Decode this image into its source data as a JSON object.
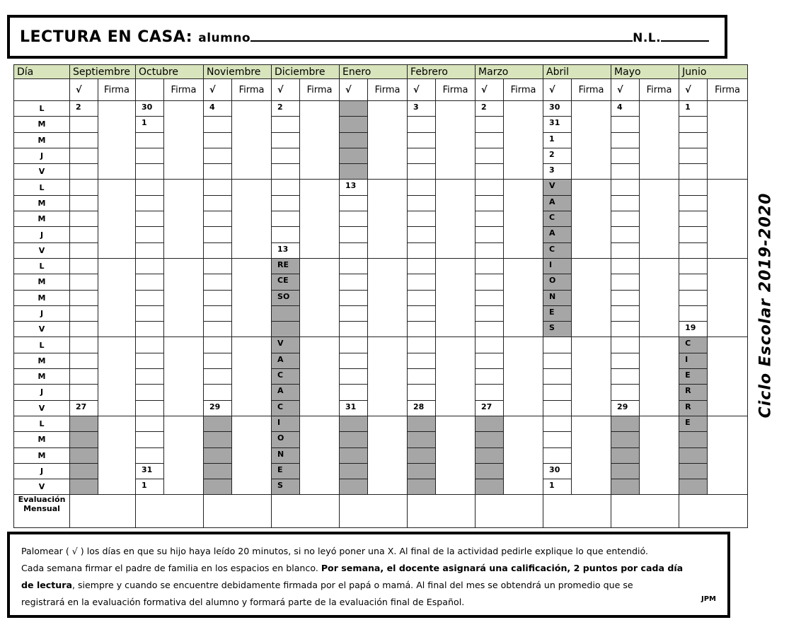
{
  "header": {
    "title": "LECTURA EN CASA:",
    "alumno_label": "alumno",
    "nl_label": "N.L."
  },
  "side_title": "Ciclo Escolar 2019-2020",
  "table": {
    "day_header": "Día",
    "check_symbol": "√",
    "firma_label": "Firma",
    "days": [
      "L",
      "M",
      "M",
      "J",
      "V",
      "L",
      "M",
      "M",
      "J",
      "V",
      "L",
      "M",
      "M",
      "J",
      "V",
      "L",
      "M",
      "M",
      "J",
      "V",
      "L",
      "M",
      "M",
      "J",
      "V"
    ],
    "eval_label": "Evaluación Mensual",
    "months": [
      {
        "name": "Septiembre",
        "show_check": true,
        "cells": [
          "2",
          "",
          "",
          "",
          "",
          "",
          "",
          "",
          "",
          "",
          "",
          "",
          "",
          "",
          "",
          "",
          "",
          "",
          "",
          "27",
          "",
          "",
          "",
          "",
          ""
        ],
        "shaded": [
          20,
          21,
          22,
          23,
          24
        ]
      },
      {
        "name": "Octubre",
        "show_check": false,
        "cells": [
          "30",
          "1",
          "",
          "",
          "",
          "",
          "",
          "",
          "",
          "",
          "",
          "",
          "",
          "",
          "",
          "",
          "",
          "",
          "",
          "",
          "",
          "",
          "",
          "31",
          "1"
        ],
        "shaded": []
      },
      {
        "name": "Noviembre",
        "show_check": true,
        "cells": [
          "4",
          "",
          "",
          "",
          "",
          "",
          "",
          "",
          "",
          "",
          "",
          "",
          "",
          "",
          "",
          "",
          "",
          "",
          "",
          "29",
          "",
          "",
          "",
          "",
          ""
        ],
        "shaded": [
          20,
          21,
          22,
          23,
          24
        ]
      },
      {
        "name": "Diciembre",
        "show_check": true,
        "cells": [
          "2",
          "",
          "",
          "",
          "",
          "",
          "",
          "",
          "",
          "13",
          "RE",
          "CE",
          "SO",
          "",
          "",
          "V",
          "A",
          "C",
          "A",
          "C",
          "I",
          "O",
          "N",
          "E",
          "S"
        ],
        "shaded": [
          10,
          11,
          12,
          13,
          14,
          15,
          16,
          17,
          18,
          19,
          20,
          21,
          22,
          23,
          24
        ]
      },
      {
        "name": "Enero",
        "show_check": true,
        "cells": [
          "",
          "",
          "",
          "",
          "",
          "13",
          "",
          "",
          "",
          "",
          "",
          "",
          "",
          "",
          "",
          "",
          "",
          "",
          "",
          "31",
          "",
          "",
          "",
          "",
          ""
        ],
        "shaded": [
          0,
          1,
          2,
          3,
          4,
          20,
          21,
          22,
          23,
          24
        ]
      },
      {
        "name": "Febrero",
        "show_check": true,
        "cells": [
          "3",
          "",
          "",
          "",
          "",
          "",
          "",
          "",
          "",
          "",
          "",
          "",
          "",
          "",
          "",
          "",
          "",
          "",
          "",
          "28",
          "",
          "",
          "",
          "",
          ""
        ],
        "shaded": [
          20,
          21,
          22,
          23,
          24
        ]
      },
      {
        "name": "Marzo",
        "show_check": true,
        "cells": [
          "2",
          "",
          "",
          "",
          "",
          "",
          "",
          "",
          "",
          "",
          "",
          "",
          "",
          "",
          "",
          "",
          "",
          "",
          "",
          "27",
          "",
          "",
          "",
          "",
          ""
        ],
        "shaded": [
          20,
          21,
          22,
          23,
          24
        ]
      },
      {
        "name": "Abril",
        "show_check": true,
        "cells": [
          "30",
          "31",
          "1",
          "2",
          "3",
          "V",
          "A",
          "C",
          "A",
          "C",
          "I",
          "O",
          "N",
          "E",
          "S",
          "",
          "",
          "",
          "",
          "",
          "",
          "",
          "",
          "30",
          "1"
        ],
        "shaded": [
          5,
          6,
          7,
          8,
          9,
          10,
          11,
          12,
          13,
          14
        ]
      },
      {
        "name": "Mayo",
        "show_check": true,
        "cells": [
          "4",
          "",
          "",
          "",
          "",
          "",
          "",
          "",
          "",
          "",
          "",
          "",
          "",
          "",
          "",
          "",
          "",
          "",
          "",
          "29",
          "",
          "",
          "",
          "",
          ""
        ],
        "shaded": [
          20,
          21,
          22,
          23,
          24
        ]
      },
      {
        "name": "Junio",
        "show_check": true,
        "cells": [
          "1",
          "",
          "",
          "",
          "",
          "",
          "",
          "",
          "",
          "",
          "",
          "",
          "",
          "",
          "19",
          "C",
          "I",
          "E",
          "R",
          "R",
          "E",
          "",
          "",
          "",
          ""
        ],
        "shaded": [
          15,
          16,
          17,
          18,
          19,
          20,
          21,
          22,
          23,
          24
        ]
      }
    ]
  },
  "note": {
    "line1": "Palomear ( √ ) los días en que su hijo haya leído 20 minutos, si no leyó poner una X. Al final de la actividad pedirle explique lo que entendió.",
    "line2_a": "Cada semana firmar el padre de familia en los espacios en blanco. ",
    "line2_b": "Por semana, el docente asignará una calificación, 2 puntos por cada día",
    "line3_a": "de lectura",
    "line3_b": ", siempre y cuando se encuentre debidamente firmada por el papá o mamá. Al final del mes se obtendrá un promedio que se",
    "line4": "registrará en la evaluación formativa del alumno y formará parte de la evaluación final de Español.",
    "signature": "JPM"
  }
}
